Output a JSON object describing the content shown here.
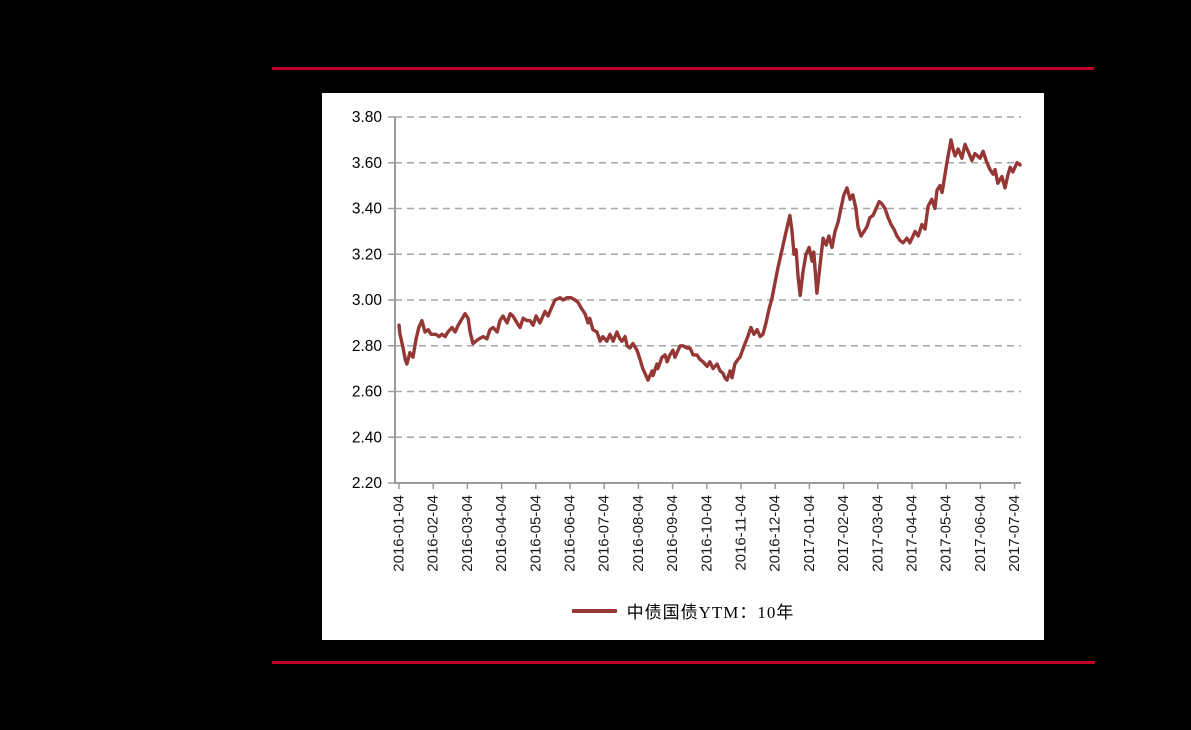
{
  "colors": {
    "page_background": "#000000",
    "panel_background": "#FFFFFF",
    "rule": "#C00026",
    "series": "#953735",
    "grid": "#A6A6A6",
    "axis": "#9B9B9B",
    "text": "#1A1A1A"
  },
  "legend": {
    "label": "中债国债YTM：10年"
  },
  "chart_data": {
    "type": "line",
    "title": "",
    "xlabel": "",
    "ylabel": "",
    "ylim": [
      2.2,
      3.8
    ],
    "y_ticks": [
      "2.20",
      "2.40",
      "2.60",
      "2.80",
      "3.00",
      "3.20",
      "3.40",
      "3.60",
      "3.80"
    ],
    "x_labels": [
      "2016-01-04",
      "2016-02-04",
      "2016-03-04",
      "2016-04-04",
      "2016-05-04",
      "2016-06-04",
      "2016-07-04",
      "2016-08-04",
      "2016-09-04",
      "2016-10-04",
      "2016-11-04",
      "2016-12-04",
      "2017-01-04",
      "2017-02-04",
      "2017-03-04",
      "2017-04-04",
      "2017-05-04",
      "2017-06-04",
      "2017-07-04"
    ],
    "grid": "horizontal-dashed",
    "legend_position": "bottom",
    "series": [
      {
        "name": "中债国债YTM：10年",
        "color": "#953735",
        "x_unit": "months since 2016-01-04",
        "points": [
          [
            0,
            2.89
          ],
          [
            0.03,
            2.85
          ],
          [
            0.12,
            2.79
          ],
          [
            0.18,
            2.74
          ],
          [
            0.23,
            2.72
          ],
          [
            0.32,
            2.77
          ],
          [
            0.41,
            2.75
          ],
          [
            0.5,
            2.83
          ],
          [
            0.58,
            2.88
          ],
          [
            0.67,
            2.91
          ],
          [
            0.76,
            2.86
          ],
          [
            0.85,
            2.87
          ],
          [
            0.94,
            2.85
          ],
          [
            1.08,
            2.85
          ],
          [
            1.17,
            2.84
          ],
          [
            1.26,
            2.85
          ],
          [
            1.35,
            2.84
          ],
          [
            1.43,
            2.86
          ],
          [
            1.55,
            2.88
          ],
          [
            1.64,
            2.86
          ],
          [
            1.73,
            2.89
          ],
          [
            1.81,
            2.91
          ],
          [
            1.93,
            2.94
          ],
          [
            2.02,
            2.92
          ],
          [
            2.08,
            2.86
          ],
          [
            2.16,
            2.81
          ],
          [
            2.25,
            2.82
          ],
          [
            2.34,
            2.83
          ],
          [
            2.46,
            2.84
          ],
          [
            2.57,
            2.83
          ],
          [
            2.66,
            2.87
          ],
          [
            2.75,
            2.88
          ],
          [
            2.87,
            2.86
          ],
          [
            2.95,
            2.91
          ],
          [
            3.04,
            2.93
          ],
          [
            3.16,
            2.9
          ],
          [
            3.25,
            2.94
          ],
          [
            3.33,
            2.93
          ],
          [
            3.45,
            2.9
          ],
          [
            3.54,
            2.88
          ],
          [
            3.63,
            2.92
          ],
          [
            3.74,
            2.91
          ],
          [
            3.83,
            2.91
          ],
          [
            3.92,
            2.89
          ],
          [
            4.01,
            2.93
          ],
          [
            4.12,
            2.9
          ],
          [
            4.27,
            2.95
          ],
          [
            4.36,
            2.93
          ],
          [
            4.47,
            2.97
          ],
          [
            4.56,
            3.0
          ],
          [
            4.71,
            3.01
          ],
          [
            4.8,
            3.0
          ],
          [
            4.91,
            3.01
          ],
          [
            5.03,
            3.01
          ],
          [
            5.15,
            3.0
          ],
          [
            5.23,
            2.99
          ],
          [
            5.35,
            2.96
          ],
          [
            5.44,
            2.94
          ],
          [
            5.53,
            2.9
          ],
          [
            5.58,
            2.92
          ],
          [
            5.67,
            2.87
          ],
          [
            5.79,
            2.86
          ],
          [
            5.88,
            2.82
          ],
          [
            5.96,
            2.84
          ],
          [
            6.08,
            2.82
          ],
          [
            6.17,
            2.85
          ],
          [
            6.26,
            2.82
          ],
          [
            6.37,
            2.86
          ],
          [
            6.46,
            2.83
          ],
          [
            6.52,
            2.82
          ],
          [
            6.61,
            2.84
          ],
          [
            6.67,
            2.8
          ],
          [
            6.75,
            2.79
          ],
          [
            6.84,
            2.81
          ],
          [
            6.96,
            2.78
          ],
          [
            7.05,
            2.74
          ],
          [
            7.13,
            2.7
          ],
          [
            7.25,
            2.66
          ],
          [
            7.28,
            2.65
          ],
          [
            7.4,
            2.69
          ],
          [
            7.43,
            2.67
          ],
          [
            7.54,
            2.72
          ],
          [
            7.57,
            2.7
          ],
          [
            7.69,
            2.75
          ],
          [
            7.78,
            2.76
          ],
          [
            7.84,
            2.73
          ],
          [
            7.92,
            2.76
          ],
          [
            8.01,
            2.78
          ],
          [
            8.07,
            2.75
          ],
          [
            8.22,
            2.8
          ],
          [
            8.3,
            2.8
          ],
          [
            8.42,
            2.79
          ],
          [
            8.51,
            2.79
          ],
          [
            8.6,
            2.76
          ],
          [
            8.71,
            2.76
          ],
          [
            8.8,
            2.74
          ],
          [
            8.89,
            2.73
          ],
          [
            9.01,
            2.71
          ],
          [
            9.09,
            2.73
          ],
          [
            9.18,
            2.7
          ],
          [
            9.3,
            2.72
          ],
          [
            9.39,
            2.69
          ],
          [
            9.47,
            2.68
          ],
          [
            9.53,
            2.66
          ],
          [
            9.59,
            2.65
          ],
          [
            9.68,
            2.69
          ],
          [
            9.74,
            2.66
          ],
          [
            9.82,
            2.72
          ],
          [
            9.91,
            2.74
          ],
          [
            9.97,
            2.75
          ],
          [
            10.09,
            2.8
          ],
          [
            10.2,
            2.84
          ],
          [
            10.29,
            2.88
          ],
          [
            10.38,
            2.85
          ],
          [
            10.47,
            2.87
          ],
          [
            10.56,
            2.84
          ],
          [
            10.64,
            2.85
          ],
          [
            10.73,
            2.9
          ],
          [
            10.82,
            2.96
          ],
          [
            10.91,
            3.01
          ],
          [
            11,
            3.08
          ],
          [
            11.08,
            3.14
          ],
          [
            11.17,
            3.2
          ],
          [
            11.26,
            3.26
          ],
          [
            11.35,
            3.32
          ],
          [
            11.43,
            3.37
          ],
          [
            11.49,
            3.3
          ],
          [
            11.55,
            3.2
          ],
          [
            11.61,
            3.22
          ],
          [
            11.67,
            3.1
          ],
          [
            11.73,
            3.02
          ],
          [
            11.81,
            3.12
          ],
          [
            11.9,
            3.2
          ],
          [
            11.99,
            3.23
          ],
          [
            12.08,
            3.17
          ],
          [
            12.13,
            3.21
          ],
          [
            12.22,
            3.03
          ],
          [
            12.31,
            3.15
          ],
          [
            12.4,
            3.27
          ],
          [
            12.49,
            3.24
          ],
          [
            12.57,
            3.28
          ],
          [
            12.66,
            3.23
          ],
          [
            12.75,
            3.3
          ],
          [
            12.84,
            3.34
          ],
          [
            12.92,
            3.4
          ],
          [
            13.01,
            3.46
          ],
          [
            13.1,
            3.49
          ],
          [
            13.19,
            3.44
          ],
          [
            13.27,
            3.46
          ],
          [
            13.36,
            3.4
          ],
          [
            13.42,
            3.32
          ],
          [
            13.51,
            3.28
          ],
          [
            13.6,
            3.3
          ],
          [
            13.68,
            3.32
          ],
          [
            13.77,
            3.36
          ],
          [
            13.86,
            3.37
          ],
          [
            13.95,
            3.4
          ],
          [
            14.04,
            3.43
          ],
          [
            14.12,
            3.42
          ],
          [
            14.21,
            3.4
          ],
          [
            14.3,
            3.36
          ],
          [
            14.39,
            3.33
          ],
          [
            14.47,
            3.31
          ],
          [
            14.56,
            3.28
          ],
          [
            14.65,
            3.26
          ],
          [
            14.74,
            3.25
          ],
          [
            14.85,
            3.27
          ],
          [
            14.94,
            3.25
          ],
          [
            15.09,
            3.3
          ],
          [
            15.18,
            3.28
          ],
          [
            15.29,
            3.33
          ],
          [
            15.38,
            3.31
          ],
          [
            15.47,
            3.41
          ],
          [
            15.58,
            3.44
          ],
          [
            15.67,
            3.4
          ],
          [
            15.73,
            3.48
          ],
          [
            15.82,
            3.5
          ],
          [
            15.88,
            3.47
          ],
          [
            16.02,
            3.6
          ],
          [
            16.14,
            3.7
          ],
          [
            16.2,
            3.66
          ],
          [
            16.26,
            3.63
          ],
          [
            16.35,
            3.66
          ],
          [
            16.46,
            3.62
          ],
          [
            16.55,
            3.68
          ],
          [
            16.64,
            3.65
          ],
          [
            16.75,
            3.61
          ],
          [
            16.84,
            3.64
          ],
          [
            16.99,
            3.62
          ],
          [
            17.08,
            3.65
          ],
          [
            17.19,
            3.6
          ],
          [
            17.28,
            3.57
          ],
          [
            17.37,
            3.55
          ],
          [
            17.43,
            3.57
          ],
          [
            17.51,
            3.51
          ],
          [
            17.63,
            3.54
          ],
          [
            17.72,
            3.49
          ],
          [
            17.81,
            3.55
          ],
          [
            17.87,
            3.58
          ],
          [
            17.95,
            3.56
          ],
          [
            18.07,
            3.6
          ],
          [
            18.16,
            3.59
          ]
        ]
      }
    ]
  }
}
